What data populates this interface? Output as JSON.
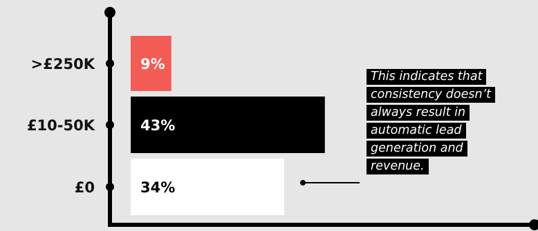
{
  "colors": {
    "background": "#e6e6e6",
    "axis": "#000000",
    "highlight": "#f25c54",
    "dark": "#000000",
    "light": "#ffffff"
  },
  "annotation": {
    "text": "This indicates that consistency doesn’t always result in automatic lead generation and revenue."
  },
  "chart_data": {
    "type": "bar",
    "orientation": "horizontal",
    "categories": [
      ">£250K",
      "£10-50K",
      "£0"
    ],
    "values": [
      9,
      43,
      34
    ],
    "value_labels": [
      "9%",
      "43%",
      "34%"
    ],
    "bar_colors": [
      "#f25c54",
      "#000000",
      "#ffffff"
    ],
    "label_colors": [
      "#ffffff",
      "#ffffff",
      "#000000"
    ],
    "xlim": [
      0,
      45
    ],
    "xlabel": "",
    "ylabel": "",
    "title": "",
    "grid": false
  }
}
